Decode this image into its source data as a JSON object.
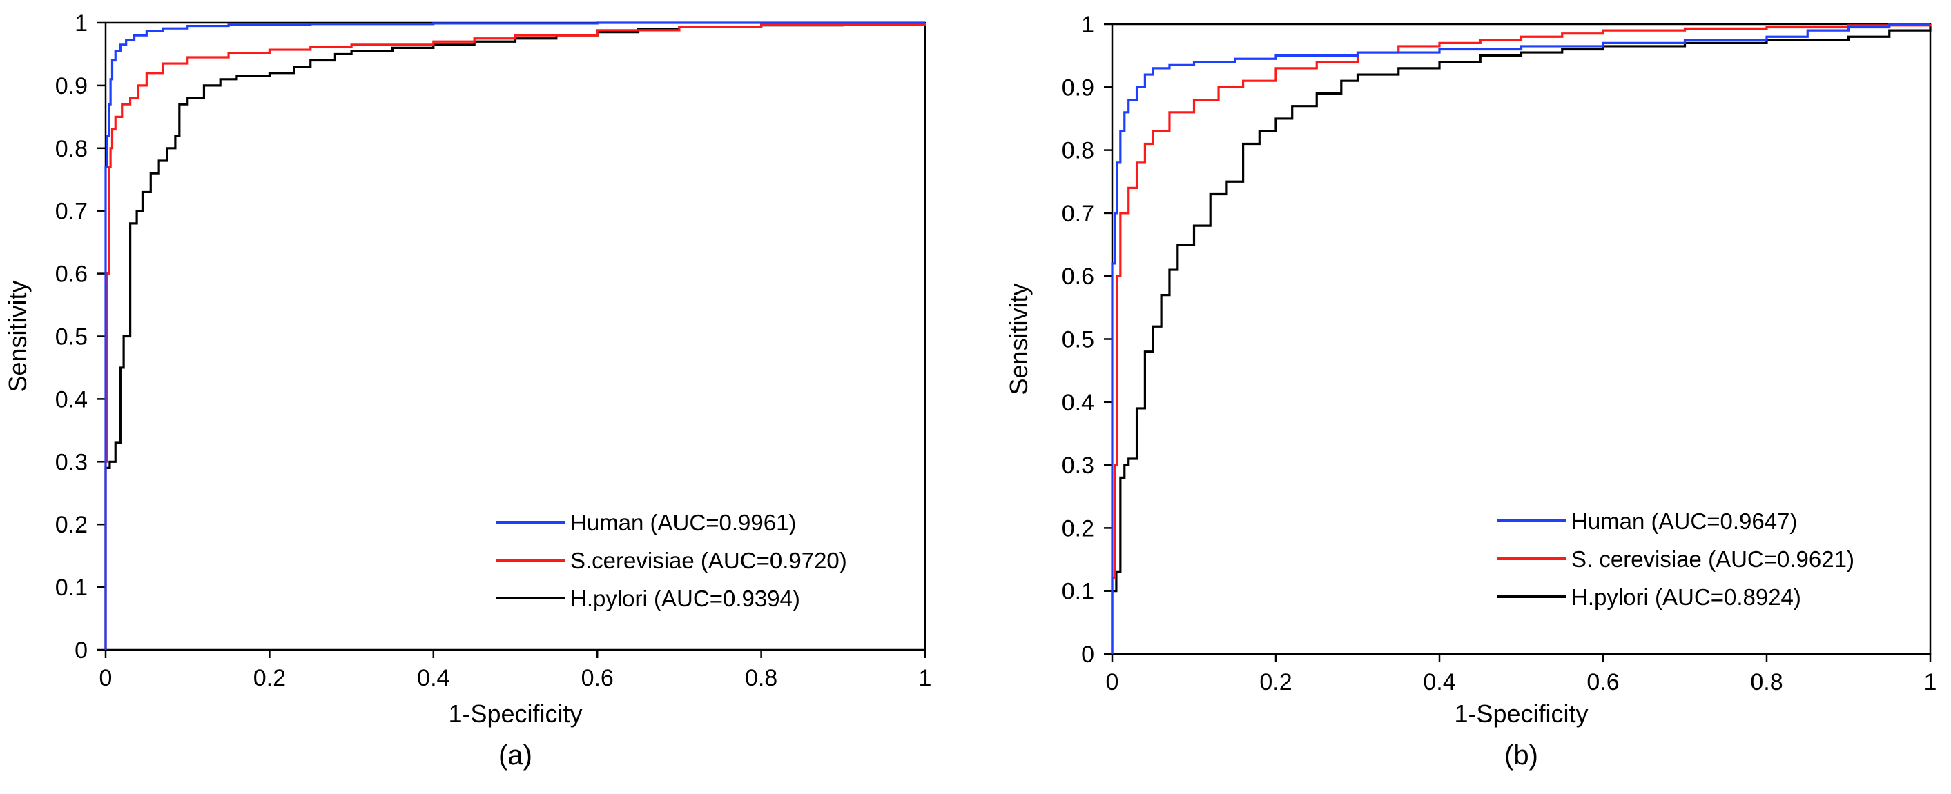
{
  "chart_data": [
    {
      "type": "line",
      "panel_label": "(a)",
      "xlabel": "1-Specificity",
      "ylabel": "Sensitivity",
      "xlim": [
        0,
        1
      ],
      "ylim": [
        0,
        1
      ],
      "x_ticks": [
        "0",
        "0.2",
        "0.4",
        "0.6",
        "0.8",
        "1"
      ],
      "y_ticks": [
        "0",
        "0.1",
        "0.2",
        "0.3",
        "0.4",
        "0.5",
        "0.6",
        "0.7",
        "0.8",
        "0.9",
        "1"
      ],
      "grid": false,
      "legend_position": "bottom-right",
      "series": [
        {
          "name": "Human",
          "legend_label": "Human  (AUC=0.9961)",
          "color": "#1f3fff",
          "x": [
            0,
            0,
            0.002,
            0.004,
            0.006,
            0.008,
            0.012,
            0.018,
            0.025,
            0.035,
            0.05,
            0.07,
            0.1,
            0.15,
            0.25,
            0.4,
            0.6,
            0.8,
            1
          ],
          "y": [
            0,
            0.77,
            0.82,
            0.87,
            0.91,
            0.94,
            0.955,
            0.965,
            0.972,
            0.98,
            0.987,
            0.991,
            0.995,
            0.997,
            0.998,
            0.999,
            1,
            1,
            1
          ]
        },
        {
          "name": "S.cerevisiae",
          "legend_label": "S.cerevisiae (AUC=0.9720)",
          "color": "#ff1a1a",
          "x": [
            0,
            0,
            0.002,
            0.004,
            0.006,
            0.008,
            0.012,
            0.02,
            0.03,
            0.04,
            0.05,
            0.07,
            0.1,
            0.15,
            0.2,
            0.25,
            0.3,
            0.4,
            0.45,
            0.5,
            0.6,
            0.7,
            0.8,
            1
          ],
          "y": [
            0,
            0.3,
            0.6,
            0.77,
            0.8,
            0.83,
            0.85,
            0.87,
            0.88,
            0.9,
            0.92,
            0.935,
            0.945,
            0.952,
            0.957,
            0.962,
            0.965,
            0.97,
            0.975,
            0.98,
            0.988,
            0.993,
            0.997,
            1
          ]
        },
        {
          "name": "H.pylori",
          "legend_label": "H.pylori  (AUC=0.9394)",
          "color": "#000000",
          "x": [
            0,
            0,
            0.005,
            0.012,
            0.018,
            0.022,
            0.03,
            0.038,
            0.045,
            0.055,
            0.065,
            0.075,
            0.085,
            0.09,
            0.1,
            0.12,
            0.14,
            0.16,
            0.2,
            0.23,
            0.25,
            0.28,
            0.3,
            0.35,
            0.4,
            0.45,
            0.5,
            0.55,
            0.6,
            0.65,
            0.7,
            0.8,
            0.9,
            1
          ],
          "y": [
            0,
            0.29,
            0.3,
            0.33,
            0.45,
            0.5,
            0.68,
            0.7,
            0.73,
            0.76,
            0.78,
            0.8,
            0.82,
            0.87,
            0.88,
            0.9,
            0.91,
            0.915,
            0.92,
            0.93,
            0.94,
            0.95,
            0.955,
            0.96,
            0.965,
            0.97,
            0.975,
            0.98,
            0.985,
            0.99,
            0.993,
            0.996,
            0.998,
            1
          ]
        }
      ]
    },
    {
      "type": "line",
      "panel_label": "(b)",
      "xlabel": "1-Specificity",
      "ylabel": "Sensitivity",
      "xlim": [
        0,
        1
      ],
      "ylim": [
        0,
        1
      ],
      "x_ticks": [
        "0",
        "0.2",
        "0.4",
        "0.6",
        "0.8",
        "1"
      ],
      "y_ticks": [
        "0",
        "0.1",
        "0.2",
        "0.3",
        "0.4",
        "0.5",
        "0.6",
        "0.7",
        "0.8",
        "0.9",
        "1"
      ],
      "grid": false,
      "legend_position": "bottom-right",
      "series": [
        {
          "name": "Human",
          "legend_label": "Human (AUC=0.9647)",
          "color": "#1f3fff",
          "x": [
            0,
            0,
            0.003,
            0.006,
            0.01,
            0.015,
            0.02,
            0.03,
            0.04,
            0.05,
            0.07,
            0.1,
            0.15,
            0.2,
            0.3,
            0.4,
            0.5,
            0.6,
            0.7,
            0.8,
            0.85,
            0.9,
            0.95,
            1
          ],
          "y": [
            0,
            0.62,
            0.7,
            0.78,
            0.83,
            0.86,
            0.88,
            0.9,
            0.92,
            0.93,
            0.935,
            0.94,
            0.945,
            0.95,
            0.955,
            0.96,
            0.965,
            0.97,
            0.975,
            0.98,
            0.99,
            0.995,
            1,
            1
          ]
        },
        {
          "name": "S. cerevisiae",
          "legend_label": "S. cerevisiae (AUC=0.9621)",
          "color": "#ff1a1a",
          "x": [
            0,
            0,
            0.003,
            0.006,
            0.01,
            0.02,
            0.03,
            0.04,
            0.05,
            0.07,
            0.1,
            0.13,
            0.16,
            0.2,
            0.25,
            0.3,
            0.35,
            0.4,
            0.45,
            0.5,
            0.55,
            0.6,
            0.7,
            0.8,
            0.9,
            1
          ],
          "y": [
            0,
            0.12,
            0.3,
            0.6,
            0.7,
            0.74,
            0.78,
            0.81,
            0.83,
            0.86,
            0.88,
            0.9,
            0.91,
            0.93,
            0.94,
            0.955,
            0.965,
            0.97,
            0.975,
            0.98,
            0.985,
            0.99,
            0.993,
            0.995,
            0.998,
            1
          ]
        },
        {
          "name": "H.pylori",
          "legend_label": "H.pylori  (AUC=0.8924)",
          "color": "#000000",
          "x": [
            0,
            0,
            0.005,
            0.01,
            0.015,
            0.02,
            0.03,
            0.04,
            0.05,
            0.06,
            0.07,
            0.08,
            0.1,
            0.12,
            0.14,
            0.16,
            0.18,
            0.2,
            0.22,
            0.25,
            0.28,
            0.3,
            0.35,
            0.4,
            0.45,
            0.5,
            0.55,
            0.6,
            0.7,
            0.8,
            0.9,
            0.95,
            1
          ],
          "y": [
            0,
            0.1,
            0.13,
            0.28,
            0.3,
            0.31,
            0.39,
            0.48,
            0.52,
            0.57,
            0.61,
            0.65,
            0.68,
            0.73,
            0.75,
            0.81,
            0.83,
            0.85,
            0.87,
            0.89,
            0.91,
            0.92,
            0.93,
            0.94,
            0.95,
            0.955,
            0.96,
            0.965,
            0.97,
            0.975,
            0.98,
            0.99,
            1
          ]
        }
      ]
    }
  ]
}
